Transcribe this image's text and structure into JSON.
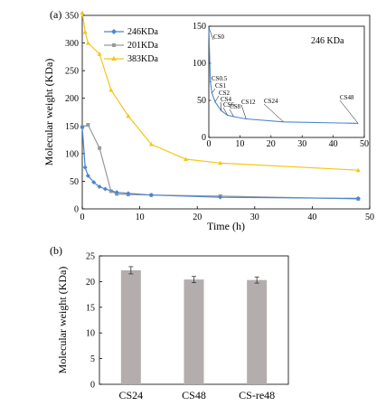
{
  "chart_data": [
    {
      "panel_label": "(a)",
      "type": "line",
      "xlabel": "Time (h)",
      "ylabel": "Molecular weight (KDa)",
      "xlim": [
        0,
        50
      ],
      "ylim": [
        0,
        350
      ],
      "xticks": [
        "0",
        "10",
        "20",
        "30",
        "40",
        "50"
      ],
      "yticks": [
        "0",
        "50",
        "100",
        "150",
        "200",
        "250",
        "300",
        "350"
      ],
      "legend_position": "top-left",
      "series": [
        {
          "name": "246KDa",
          "color": "#4a86cf",
          "marker": "diamond",
          "x": [
            0,
            0.5,
            1,
            2,
            3,
            4,
            6,
            8,
            12,
            24,
            48
          ],
          "y": [
            148,
            75,
            60,
            48,
            40,
            36,
            30,
            28,
            25,
            21,
            19
          ]
        },
        {
          "name": "201KDa",
          "color": "#999999",
          "marker": "square",
          "x": [
            0,
            1,
            3,
            5,
            6,
            8,
            12,
            24,
            48
          ],
          "y": [
            148,
            152,
            110,
            32,
            27,
            26,
            25,
            23,
            18
          ]
        },
        {
          "name": "383KDa",
          "color": "#f5c518",
          "marker": "triangle",
          "x": [
            0,
            0.5,
            1,
            3,
            5,
            8,
            12,
            18,
            24,
            48
          ],
          "y": [
            355,
            320,
            300,
            280,
            215,
            168,
            117,
            90,
            83,
            70
          ]
        }
      ],
      "inset": {
        "title": "246 KDa",
        "xlim": [
          0,
          50
        ],
        "ylim": [
          0,
          150
        ],
        "xticks": [
          "0",
          "10",
          "20",
          "30",
          "40",
          "50"
        ],
        "yticks": [
          "0",
          "50",
          "100",
          "150"
        ],
        "x": [
          0,
          0.5,
          1,
          2,
          4,
          6,
          8,
          12,
          24,
          48
        ],
        "y": [
          148,
          75,
          60,
          48,
          36,
          30,
          28,
          25,
          21,
          19
        ],
        "annotations": [
          "CS0",
          "CS0.5",
          "CS1",
          "CS2",
          "CS4",
          "CS6",
          "CS8",
          "CS12",
          "CS24",
          "CS48"
        ]
      }
    },
    {
      "panel_label": "(b)",
      "type": "bar",
      "xlabel": "",
      "ylabel": "Molecular weight (KDa)",
      "ylim": [
        0,
        25
      ],
      "yticks": [
        "0",
        "5",
        "10",
        "15",
        "20",
        "25"
      ],
      "categories": [
        "CS24",
        "CS48",
        "CS-re48"
      ],
      "values": [
        22.2,
        20.4,
        20.3
      ],
      "errors": [
        0.7,
        0.6,
        0.6
      ],
      "bar_color": "#b3adad"
    }
  ]
}
